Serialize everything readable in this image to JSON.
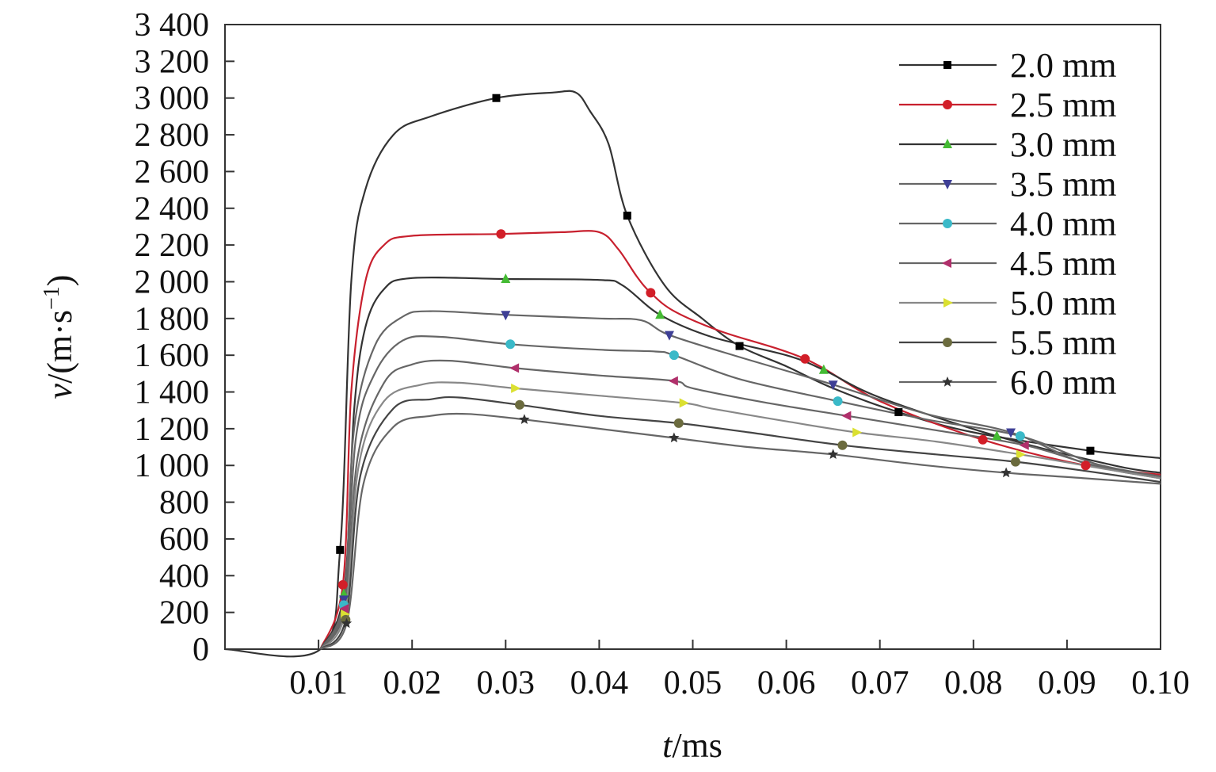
{
  "chart_data": {
    "type": "line",
    "title": "",
    "xlabel_italic": "t",
    "xlabel_rest": "/ms",
    "ylabel_italic": "v",
    "ylabel_rest": "/(m·s",
    "ylabel_exp": "−1",
    "ylabel_close": ")",
    "xlim": [
      0,
      0.1
    ],
    "ylim": [
      0,
      3400
    ],
    "grid": false,
    "legend_position": "top-right",
    "x_ticks": [
      0.01,
      0.02,
      0.03,
      0.04,
      0.05,
      0.06,
      0.07,
      0.08,
      0.09,
      0.1
    ],
    "x_tick_labels": [
      "0.01",
      "0.02",
      "0.03",
      "0.04",
      "0.05",
      "0.06",
      "0.07",
      "0.08",
      "0.09",
      "0.10"
    ],
    "y_ticks": [
      0,
      200,
      400,
      600,
      800,
      1000,
      1200,
      1400,
      1600,
      1800,
      2000,
      2200,
      2400,
      2600,
      2800,
      3000,
      3200,
      3400
    ],
    "y_tick_labels": [
      "0",
      "200",
      "400",
      "600",
      "800",
      "1 000",
      "1 200",
      "1 400",
      "1 600",
      "1 800",
      "2 000",
      "2 200",
      "2 400",
      "2 600",
      "2 800",
      "3 000",
      "3 200",
      "3 400"
    ],
    "series": [
      {
        "name": "2.0 mm",
        "color": "#333333",
        "marker_color": "#000000",
        "marker": "square",
        "points": [
          [
            0.0,
            0
          ],
          [
            0.0102,
            0
          ],
          [
            0.0123,
            540
          ],
          [
            0.0135,
            2000
          ],
          [
            0.015,
            2500
          ],
          [
            0.018,
            2800
          ],
          [
            0.022,
            2900
          ],
          [
            0.029,
            3000
          ],
          [
            0.035,
            3030
          ],
          [
            0.0375,
            3030
          ],
          [
            0.039,
            2930
          ],
          [
            0.041,
            2750
          ],
          [
            0.043,
            2360
          ],
          [
            0.047,
            1980
          ],
          [
            0.051,
            1800
          ],
          [
            0.055,
            1650
          ],
          [
            0.06,
            1540
          ],
          [
            0.065,
            1420
          ],
          [
            0.072,
            1290
          ],
          [
            0.08,
            1180
          ],
          [
            0.0925,
            1080
          ],
          [
            0.1,
            1040
          ]
        ],
        "markers": [
          [
            0.0123,
            540
          ],
          [
            0.029,
            3000
          ],
          [
            0.043,
            2360
          ],
          [
            0.055,
            1650
          ],
          [
            0.072,
            1290
          ],
          [
            0.0925,
            1080
          ]
        ]
      },
      {
        "name": "2.5 mm",
        "color": "#c8202e",
        "marker_color": "#d21e28",
        "marker": "circle",
        "points": [
          [
            0.0102,
            0
          ],
          [
            0.0126,
            350
          ],
          [
            0.0135,
            1400
          ],
          [
            0.015,
            2000
          ],
          [
            0.017,
            2200
          ],
          [
            0.02,
            2250
          ],
          [
            0.0295,
            2260
          ],
          [
            0.036,
            2270
          ],
          [
            0.04,
            2270
          ],
          [
            0.042,
            2180
          ],
          [
            0.044,
            2030
          ],
          [
            0.0455,
            1940
          ],
          [
            0.048,
            1840
          ],
          [
            0.053,
            1730
          ],
          [
            0.062,
            1580
          ],
          [
            0.07,
            1350
          ],
          [
            0.081,
            1140
          ],
          [
            0.092,
            1000
          ],
          [
            0.1,
            950
          ]
        ],
        "markers": [
          [
            0.0126,
            350
          ],
          [
            0.0295,
            2260
          ],
          [
            0.0455,
            1940
          ],
          [
            0.062,
            1580
          ],
          [
            0.081,
            1140
          ],
          [
            0.092,
            1000
          ]
        ]
      },
      {
        "name": "3.0 mm",
        "color": "#333333",
        "marker_color": "#44bb33",
        "marker": "triangle-up",
        "points": [
          [
            0.0102,
            0
          ],
          [
            0.0127,
            300
          ],
          [
            0.0138,
            1300
          ],
          [
            0.015,
            1750
          ],
          [
            0.017,
            1960
          ],
          [
            0.02,
            2020
          ],
          [
            0.03,
            2015
          ],
          [
            0.04,
            2010
          ],
          [
            0.0425,
            1980
          ],
          [
            0.0465,
            1820
          ],
          [
            0.052,
            1700
          ],
          [
            0.06,
            1600
          ],
          [
            0.064,
            1520
          ],
          [
            0.07,
            1370
          ],
          [
            0.0825,
            1160
          ],
          [
            0.095,
            1000
          ],
          [
            0.1,
            960
          ]
        ],
        "markers": [
          [
            0.0127,
            300
          ],
          [
            0.03,
            2015
          ],
          [
            0.0465,
            1820
          ],
          [
            0.064,
            1520
          ],
          [
            0.0825,
            1160
          ]
        ]
      },
      {
        "name": "3.5 mm",
        "color": "#666666",
        "marker_color": "#3e3f96",
        "marker": "triangle-down",
        "points": [
          [
            0.0102,
            0
          ],
          [
            0.0127,
            270
          ],
          [
            0.0138,
            1200
          ],
          [
            0.016,
            1650
          ],
          [
            0.019,
            1810
          ],
          [
            0.022,
            1840
          ],
          [
            0.03,
            1820
          ],
          [
            0.04,
            1800
          ],
          [
            0.0445,
            1790
          ],
          [
            0.0475,
            1710
          ],
          [
            0.055,
            1590
          ],
          [
            0.065,
            1440
          ],
          [
            0.075,
            1280
          ],
          [
            0.084,
            1180
          ],
          [
            0.092,
            1010
          ],
          [
            0.1,
            930
          ]
        ],
        "markers": [
          [
            0.0127,
            270
          ],
          [
            0.03,
            1820
          ],
          [
            0.0475,
            1710
          ],
          [
            0.065,
            1440
          ],
          [
            0.084,
            1180
          ]
        ]
      },
      {
        "name": "4.0 mm",
        "color": "#666666",
        "marker_color": "#3ab9c8",
        "marker": "circle",
        "points": [
          [
            0.0102,
            0
          ],
          [
            0.0127,
            240
          ],
          [
            0.014,
            1150
          ],
          [
            0.016,
            1500
          ],
          [
            0.019,
            1680
          ],
          [
            0.023,
            1700
          ],
          [
            0.0305,
            1660
          ],
          [
            0.04,
            1630
          ],
          [
            0.046,
            1620
          ],
          [
            0.048,
            1600
          ],
          [
            0.055,
            1470
          ],
          [
            0.0655,
            1350
          ],
          [
            0.075,
            1250
          ],
          [
            0.085,
            1160
          ],
          [
            0.093,
            1010
          ],
          [
            0.1,
            940
          ]
        ],
        "markers": [
          [
            0.0127,
            240
          ],
          [
            0.0305,
            1660
          ],
          [
            0.048,
            1600
          ],
          [
            0.0655,
            1350
          ],
          [
            0.085,
            1160
          ]
        ]
      },
      {
        "name": "4.5 mm",
        "color": "#666666",
        "marker_color": "#b0306b",
        "marker": "triangle-left",
        "points": [
          [
            0.0102,
            0
          ],
          [
            0.0128,
            220
          ],
          [
            0.0142,
            1050
          ],
          [
            0.017,
            1450
          ],
          [
            0.02,
            1550
          ],
          [
            0.024,
            1570
          ],
          [
            0.031,
            1530
          ],
          [
            0.04,
            1490
          ],
          [
            0.048,
            1460
          ],
          [
            0.05,
            1420
          ],
          [
            0.058,
            1340
          ],
          [
            0.0665,
            1270
          ],
          [
            0.075,
            1200
          ],
          [
            0.0855,
            1110
          ],
          [
            0.093,
            1000
          ],
          [
            0.1,
            940
          ]
        ],
        "markers": [
          [
            0.0128,
            220
          ],
          [
            0.031,
            1530
          ],
          [
            0.048,
            1460
          ],
          [
            0.0665,
            1270
          ],
          [
            0.0855,
            1110
          ]
        ]
      },
      {
        "name": "5.0 mm",
        "color": "#888888",
        "marker_color": "#dbe031",
        "marker": "triangle-right",
        "points": [
          [
            0.0102,
            0
          ],
          [
            0.0128,
            190
          ],
          [
            0.0143,
            1000
          ],
          [
            0.017,
            1350
          ],
          [
            0.021,
            1440
          ],
          [
            0.025,
            1450
          ],
          [
            0.031,
            1420
          ],
          [
            0.04,
            1380
          ],
          [
            0.049,
            1340
          ],
          [
            0.052,
            1310
          ],
          [
            0.06,
            1240
          ],
          [
            0.0675,
            1180
          ],
          [
            0.076,
            1130
          ],
          [
            0.085,
            1060
          ],
          [
            0.093,
            990
          ],
          [
            0.1,
            930
          ]
        ],
        "markers": [
          [
            0.0128,
            190
          ],
          [
            0.031,
            1420
          ],
          [
            0.049,
            1340
          ],
          [
            0.0675,
            1180
          ],
          [
            0.085,
            1060
          ]
        ]
      },
      {
        "name": "5.5 mm",
        "color": "#444444",
        "marker_color": "#6b6b3e",
        "marker": "circle",
        "points": [
          [
            0.0102,
            0
          ],
          [
            0.0129,
            160
          ],
          [
            0.0145,
            950
          ],
          [
            0.018,
            1310
          ],
          [
            0.022,
            1360
          ],
          [
            0.025,
            1370
          ],
          [
            0.0315,
            1330
          ],
          [
            0.04,
            1270
          ],
          [
            0.0485,
            1230
          ],
          [
            0.056,
            1180
          ],
          [
            0.066,
            1110
          ],
          [
            0.076,
            1060
          ],
          [
            0.0845,
            1020
          ],
          [
            0.092,
            970
          ],
          [
            0.1,
            910
          ]
        ],
        "markers": [
          [
            0.0129,
            160
          ],
          [
            0.0315,
            1330
          ],
          [
            0.0485,
            1230
          ],
          [
            0.066,
            1110
          ],
          [
            0.0845,
            1020
          ]
        ]
      },
      {
        "name": "6.0 mm",
        "color": "#666666",
        "marker_color": "#333333",
        "marker": "star",
        "points": [
          [
            0.0102,
            0
          ],
          [
            0.013,
            140
          ],
          [
            0.0148,
            900
          ],
          [
            0.018,
            1210
          ],
          [
            0.022,
            1270
          ],
          [
            0.026,
            1280
          ],
          [
            0.032,
            1250
          ],
          [
            0.04,
            1200
          ],
          [
            0.048,
            1150
          ],
          [
            0.056,
            1100
          ],
          [
            0.065,
            1060
          ],
          [
            0.075,
            1000
          ],
          [
            0.0835,
            960
          ],
          [
            0.092,
            930
          ],
          [
            0.1,
            900
          ]
        ],
        "markers": [
          [
            0.013,
            140
          ],
          [
            0.032,
            1250
          ],
          [
            0.048,
            1150
          ],
          [
            0.065,
            1060
          ],
          [
            0.0835,
            960
          ]
        ]
      }
    ]
  }
}
